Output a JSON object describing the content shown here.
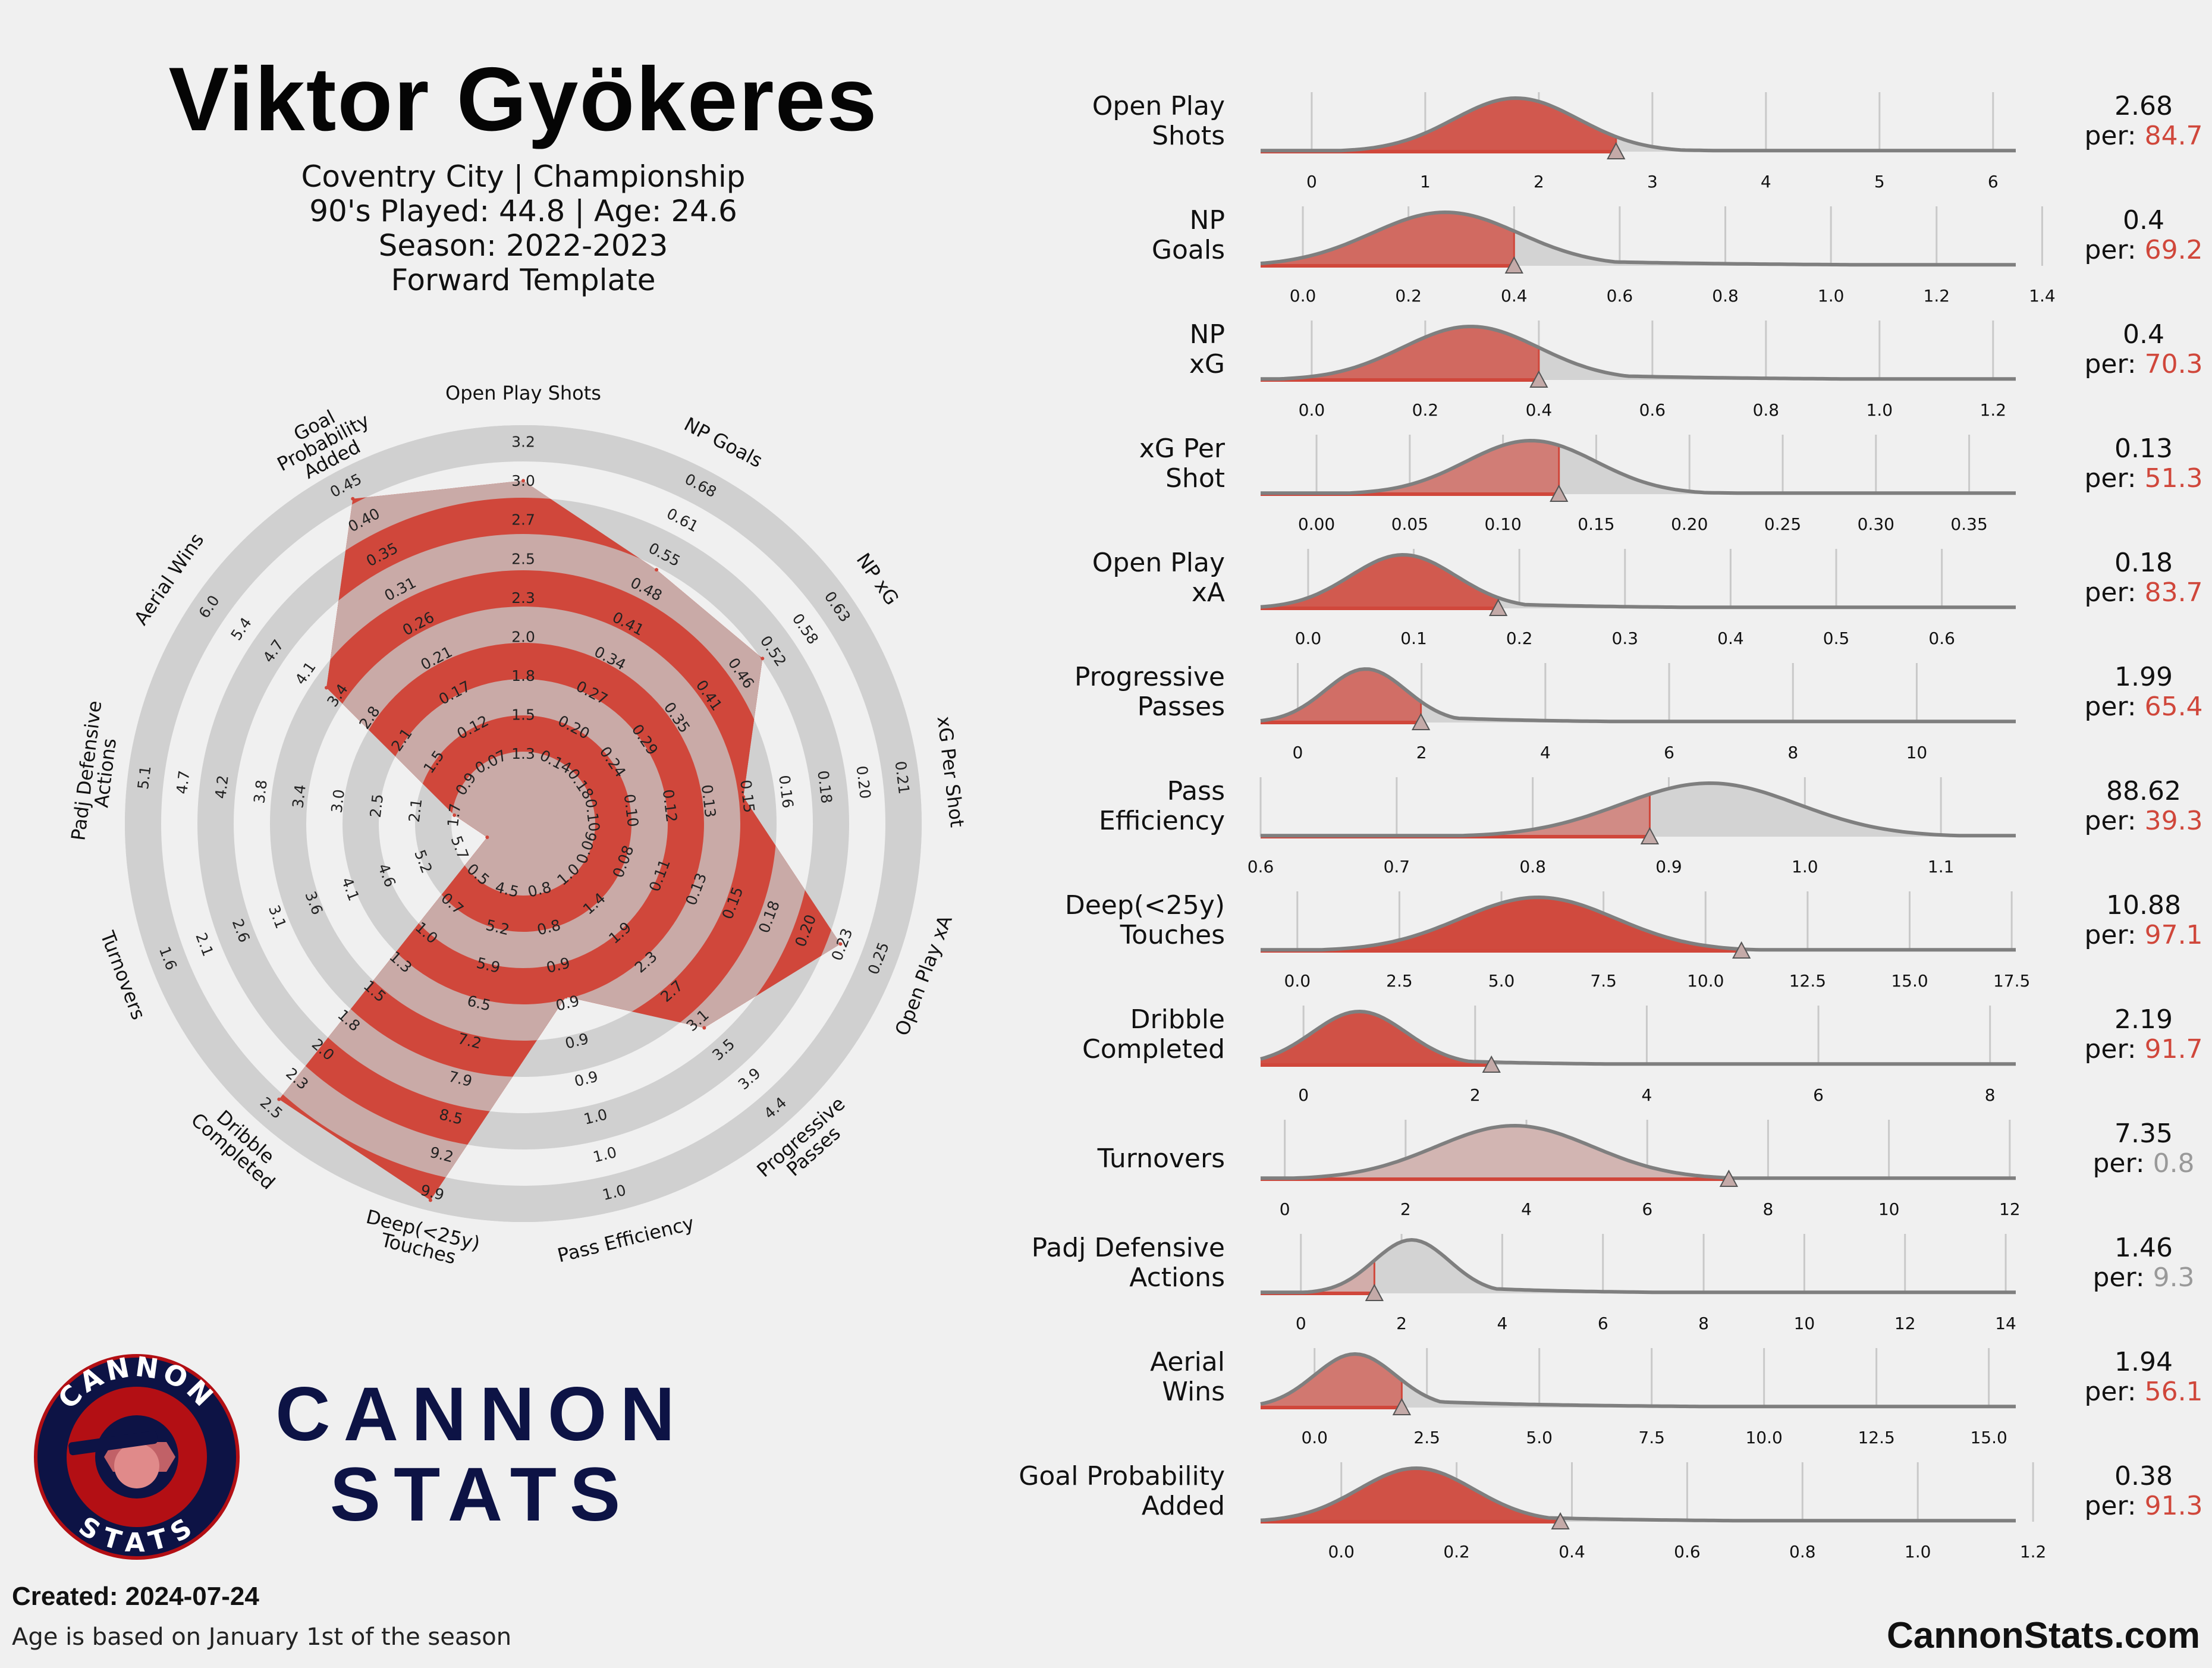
{
  "header": {
    "player_name": "Viktor Gyökeres",
    "club_line": "Coventry City | Championship",
    "played_line": "90's Played: 44.8 | Age: 24.6",
    "season_line": "Season: 2022-2023",
    "template_line": "Forward Template"
  },
  "brand": {
    "logo_top": "CANNON",
    "logo_bottom": "STATS",
    "wordmark_line1": "CANNON",
    "wordmark_line2": "STATS",
    "navy": "#0d1345",
    "red": "#b30f14"
  },
  "footer": {
    "created_label": "Created:",
    "created_date": "2024-07-24",
    "note": "Age is based on January 1st of the season",
    "site": "CannonStats.com"
  },
  "colors": {
    "accent": "#d0473b",
    "ring": "#d0d0d0",
    "background": "#f0f0f0",
    "curve": "#7f7f7f"
  },
  "chart_data": [
    {
      "type": "radar",
      "title": "Forward Template",
      "axes": [
        {
          "label": "Open Play Shots",
          "percentile": 84.7,
          "ticks": [
            "1.3",
            "1.5",
            "1.8",
            "2.0",
            "2.3",
            "2.5",
            "2.7",
            "3.0",
            "3.2"
          ]
        },
        {
          "label": "NP Goals",
          "percentile": 69.2,
          "ticks": [
            "0.14",
            "0.20",
            "0.27",
            "0.34",
            "0.41",
            "0.48",
            "0.55",
            "0.61",
            "0.68"
          ]
        },
        {
          "label": "NP xG",
          "percentile": 70.3,
          "ticks": [
            "0.18",
            "0.24",
            "0.29",
            "0.35",
            "0.41",
            "0.46",
            "0.52",
            "0.58",
            "0.63"
          ]
        },
        {
          "label": "xG Per Shot",
          "percentile": 51.3,
          "ticks": [
            "0.10",
            "0.10",
            "0.12",
            "0.13",
            "0.15",
            "0.16",
            "0.18",
            "0.20",
            "0.21"
          ]
        },
        {
          "label": "Open Play xA",
          "percentile": 83.7,
          "ticks": [
            "0.06",
            "0.08",
            "0.11",
            "0.13",
            "0.15",
            "0.18",
            "0.20",
            "0.23",
            "0.25"
          ]
        },
        {
          "label": "Progressive Passes",
          "percentile": 65.4,
          "ticks": [
            "1.0",
            "1.4",
            "1.9",
            "2.3",
            "2.7",
            "3.1",
            "3.5",
            "3.9",
            "4.4"
          ]
        },
        {
          "label": "Pass Efficiency",
          "percentile": 39.3,
          "ticks": [
            "0.8",
            "0.8",
            "0.9",
            "0.9",
            "0.9",
            "0.9",
            "1.0",
            "1.0",
            "1.0"
          ]
        },
        {
          "label": "Deep(<25y) Touches",
          "percentile": 97.1,
          "ticks": [
            "4.5",
            "5.2",
            "5.9",
            "6.5",
            "7.2",
            "7.9",
            "8.5",
            "9.2",
            "9.9"
          ]
        },
        {
          "label": "Dribble Completed",
          "percentile": 91.7,
          "ticks": [
            "0.5",
            "0.7",
            "1.0",
            "1.3",
            "1.5",
            "1.8",
            "2.0",
            "2.3",
            "2.5"
          ]
        },
        {
          "label": "Turnovers",
          "percentile": 0.8,
          "ticks": [
            "5.7",
            "5.2",
            "4.6",
            "4.1",
            "3.6",
            "3.1",
            "2.6",
            "2.1",
            "1.6"
          ]
        },
        {
          "label": "Padj Defensive Actions",
          "percentile": 9.3,
          "ticks": [
            "1.7",
            "2.1",
            "2.5",
            "3.0",
            "3.4",
            "3.8",
            "4.2",
            "4.7",
            "5.1"
          ]
        },
        {
          "label": "Aerial Wins",
          "percentile": 56.1,
          "ticks": [
            "0.9",
            "1.5",
            "2.1",
            "2.8",
            "3.4",
            "4.1",
            "4.7",
            "5.4",
            "6.0"
          ]
        },
        {
          "label": "Goal Probability Added",
          "percentile": 91.3,
          "ticks": [
            "0.07",
            "0.12",
            "0.17",
            "0.21",
            "0.26",
            "0.31",
            "0.35",
            "0.40",
            "0.45"
          ]
        }
      ]
    },
    {
      "type": "density",
      "metrics": [
        {
          "label1": "Open Play",
          "label2": "Shots",
          "value": "2.68",
          "per": "84.7",
          "v": 2.68,
          "pct": 84.7,
          "range": [
            -0.45,
            6.2
          ],
          "ticks": [
            0,
            1,
            2,
            3,
            4,
            5,
            6
          ],
          "tick_labels": [
            "0",
            "1",
            "2",
            "3",
            "4",
            "5",
            "6"
          ],
          "peak": 1.8,
          "w": 0.55,
          "tail": 0.8
        },
        {
          "label1": "NP",
          "label2": "Goals",
          "value": "0.4",
          "per": "69.2",
          "v": 0.4,
          "pct": 69.2,
          "range": [
            -0.08,
            1.35
          ],
          "ticks": [
            0,
            0.2,
            0.4,
            0.6,
            0.8,
            1.0,
            1.2,
            1.4
          ],
          "tick_labels": [
            "0.0",
            "0.2",
            "0.4",
            "0.6",
            "0.8",
            "1.0",
            "1.2",
            "1.4"
          ],
          "peak": 0.27,
          "w": 0.14,
          "tail": 0.35
        },
        {
          "label1": "NP",
          "label2": "xG",
          "value": "0.4",
          "per": "70.3",
          "v": 0.4,
          "pct": 70.3,
          "range": [
            -0.09,
            1.24
          ],
          "ticks": [
            0,
            0.2,
            0.4,
            0.6,
            0.8,
            1.0,
            1.2
          ],
          "tick_labels": [
            "0.0",
            "0.2",
            "0.4",
            "0.6",
            "0.8",
            "1.0",
            "1.2"
          ],
          "peak": 0.28,
          "w": 0.12,
          "tail": 0.3
        },
        {
          "label1": "xG Per",
          "label2": "Shot",
          "value": "0.13",
          "per": "51.3",
          "v": 0.13,
          "pct": 51.3,
          "range": [
            -0.03,
            0.375
          ],
          "ticks": [
            0,
            0.05,
            0.1,
            0.15,
            0.2,
            0.25,
            0.3,
            0.35
          ],
          "tick_labels": [
            "0.00",
            "0.05",
            "0.10",
            "0.15",
            "0.20",
            "0.25",
            "0.30",
            "0.35"
          ],
          "peak": 0.115,
          "w": 0.035,
          "tail": 0.05
        },
        {
          "label1": "Open Play",
          "label2": "xA",
          "value": "0.18",
          "per": "83.7",
          "v": 0.18,
          "pct": 83.7,
          "range": [
            -0.045,
            0.67
          ],
          "ticks": [
            0,
            0.1,
            0.2,
            0.3,
            0.4,
            0.5,
            0.6
          ],
          "tick_labels": [
            "0.0",
            "0.1",
            "0.2",
            "0.3",
            "0.4",
            "0.5",
            "0.6"
          ],
          "peak": 0.09,
          "w": 0.05,
          "tail": 0.12
        },
        {
          "label1": "Progressive",
          "label2": "Passes",
          "value": "1.99",
          "per": "65.4",
          "v": 1.99,
          "pct": 65.4,
          "range": [
            -0.6,
            11.6
          ],
          "ticks": [
            0,
            2,
            4,
            6,
            8,
            10
          ],
          "tick_labels": [
            "0",
            "2",
            "4",
            "6",
            "8",
            "10"
          ],
          "peak": 1.1,
          "w": 0.65,
          "tail": 1.8
        },
        {
          "label1": "Pass",
          "label2": "Efficiency",
          "value": "88.62",
          "per": "39.3",
          "v": 0.886,
          "pct": 39.3,
          "range": [
            0.6,
            1.155
          ],
          "ticks": [
            0.6,
            0.7,
            0.8,
            0.9,
            1.0,
            1.1
          ],
          "tick_labels": [
            "0.6",
            "0.7",
            "0.8",
            "0.9",
            "1.0",
            "1.1"
          ],
          "peak": 0.93,
          "w": 0.065,
          "tail": 0.06
        },
        {
          "label1": "Deep(<25y)",
          "label2": "Touches",
          "value": "10.88",
          "per": "97.1",
          "v": 10.88,
          "pct": 97.1,
          "range": [
            -0.9,
            17.6
          ],
          "ticks": [
            0,
            2.5,
            5,
            7.5,
            10,
            12.5,
            15,
            17.5
          ],
          "tick_labels": [
            "0.0",
            "2.5",
            "5.0",
            "7.5",
            "10.0",
            "12.5",
            "15.0",
            "17.5"
          ],
          "peak": 5.9,
          "w": 1.9,
          "tail": 2.5
        },
        {
          "label1": "Dribble",
          "label2": "Completed",
          "value": "2.19",
          "per": "91.7",
          "v": 2.19,
          "pct": 91.7,
          "range": [
            -0.5,
            8.3
          ],
          "ticks": [
            0,
            2,
            4,
            6,
            8
          ],
          "tick_labels": [
            "0",
            "2",
            "4",
            "6",
            "8"
          ],
          "peak": 0.65,
          "w": 0.55,
          "tail": 1.3
        },
        {
          "label1": "Turnovers",
          "label2": "",
          "value": "7.35",
          "per": "0.8",
          "v": 7.35,
          "pct": 0.8,
          "range": [
            -0.4,
            12.1
          ],
          "ticks": [
            0,
            2,
            4,
            6,
            8,
            10,
            12
          ],
          "tick_labels": [
            "0",
            "2",
            "4",
            "6",
            "8",
            "10",
            "12"
          ],
          "peak": 3.8,
          "w": 1.3,
          "tail": 1.6
        },
        {
          "label1": "Padj Defensive",
          "label2": "Actions",
          "value": "1.46",
          "per": "9.3",
          "v": 1.46,
          "pct": 9.3,
          "range": [
            -0.8,
            14.2
          ],
          "ticks": [
            0,
            2,
            4,
            6,
            8,
            10,
            12,
            14
          ],
          "tick_labels": [
            "0",
            "2",
            "4",
            "6",
            "8",
            "10",
            "12",
            "14"
          ],
          "peak": 2.2,
          "w": 0.75,
          "tail": 2.2
        },
        {
          "label1": "Aerial",
          "label2": "Wins",
          "value": "1.94",
          "per": "56.1",
          "v": 1.94,
          "pct": 56.1,
          "range": [
            -1.2,
            15.6
          ],
          "ticks": [
            0,
            2.5,
            5,
            7.5,
            10,
            12.5,
            15
          ],
          "tick_labels": [
            "0.0",
            "2.5",
            "5.0",
            "7.5",
            "10.0",
            "12.5",
            "15.0"
          ],
          "peak": 0.9,
          "w": 0.9,
          "tail": 3.5
        },
        {
          "label1": "Goal Probability",
          "label2": "Added",
          "value": "0.38",
          "per": "91.3",
          "v": 0.38,
          "pct": 91.3,
          "range": [
            -0.14,
            1.17
          ],
          "ticks": [
            0,
            0.2,
            0.4,
            0.6,
            0.8,
            1.0,
            1.2
          ],
          "tick_labels": [
            "0.0",
            "0.2",
            "0.4",
            "0.6",
            "0.8",
            "1.0",
            "1.2"
          ],
          "peak": 0.13,
          "w": 0.1,
          "tail": 0.25
        }
      ]
    }
  ]
}
